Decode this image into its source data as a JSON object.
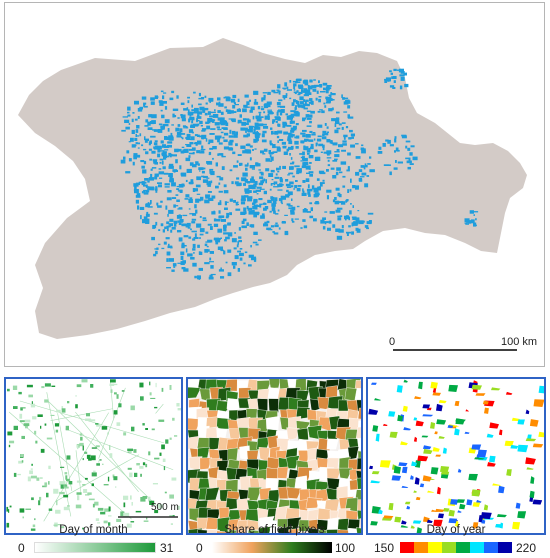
{
  "main_map": {
    "land_color": "#d3cbc7",
    "pixel_color": "#1f9ddc",
    "scalebar": {
      "start_label": "0",
      "end_label": "100 km"
    }
  },
  "insets": [
    {
      "id": "day-of-month",
      "scale_label": "500 m",
      "legend": {
        "title": "Day of month",
        "min_label": "0",
        "max_label": "31",
        "colors": [
          "#ffffff",
          "#1e9a3a"
        ]
      }
    },
    {
      "id": "share-of-field-pixels",
      "legend": {
        "title": "Share of field pixels",
        "min_label": "0",
        "max_label": "100",
        "colors": [
          "#ffffff",
          "#f0a35e",
          "#2f7d1e",
          "#000000"
        ]
      }
    },
    {
      "id": "day-of-year",
      "legend": {
        "title": "Day of year",
        "min_label": "150",
        "max_label": "220",
        "colors": [
          "#ff0000",
          "#ff8c00",
          "#ffff00",
          "#99dd22",
          "#00aa44",
          "#00e5ff",
          "#1a66ff",
          "#0000aa"
        ]
      }
    }
  ]
}
